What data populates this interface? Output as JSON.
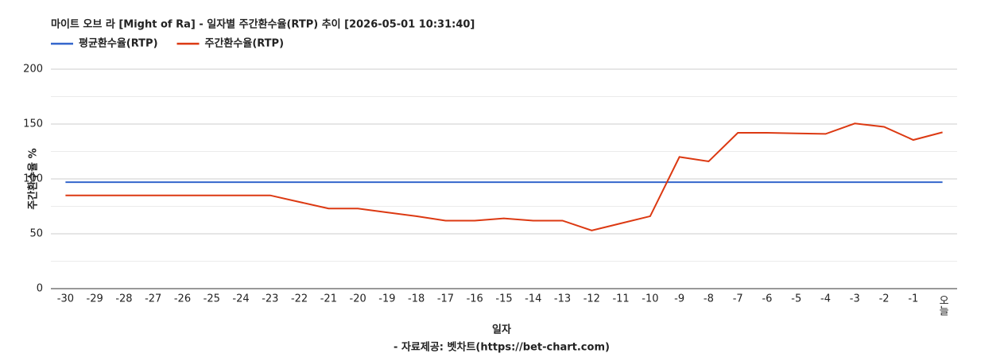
{
  "chart_data": {
    "type": "line",
    "title": "마이트 오브 라 [Might of Ra] - 일자별 주간환수율(RTP) 추이 [2026-05-01 10:31:40]",
    "y_label": "주간환수율 %",
    "x_label": "일자",
    "footer": "- 자료제공: 벳차트(https://bet-chart.com)",
    "categories": [
      "-30",
      "-29",
      "-28",
      "-27",
      "-26",
      "-25",
      "-24",
      "-23",
      "-22",
      "-21",
      "-20",
      "-19",
      "-18",
      "-17",
      "-16",
      "-15",
      "-14",
      "-13",
      "-12",
      "-11",
      "-10",
      "-9",
      "-8",
      "-7",
      "-6",
      "-5",
      "-4",
      "-3",
      "-2",
      "-1",
      "오늘"
    ],
    "series": [
      {
        "name": "평균환수율(RTP)",
        "color": "#3366cc",
        "values": [
          97,
          97,
          97,
          97,
          97,
          97,
          97,
          97,
          97,
          97,
          97,
          97,
          97,
          97,
          97,
          97,
          97,
          97,
          97,
          97,
          97,
          97,
          97,
          97,
          97,
          97,
          97,
          97,
          97,
          97,
          97
        ]
      },
      {
        "name": "주간환수율(RTP)",
        "color": "#dc3912",
        "values": [
          85,
          85,
          85,
          85,
          85,
          85,
          85,
          85,
          79,
          73,
          73,
          69.5,
          66,
          62,
          62,
          64,
          62,
          62,
          53,
          59.5,
          66,
          120,
          116,
          142,
          142,
          141.5,
          141,
          150.5,
          147.5,
          135.5,
          142.5
        ]
      }
    ],
    "ylim": [
      0,
      200
    ],
    "yticks": [
      0,
      50,
      100,
      150,
      200
    ],
    "grid": true,
    "legend": "top-left"
  }
}
